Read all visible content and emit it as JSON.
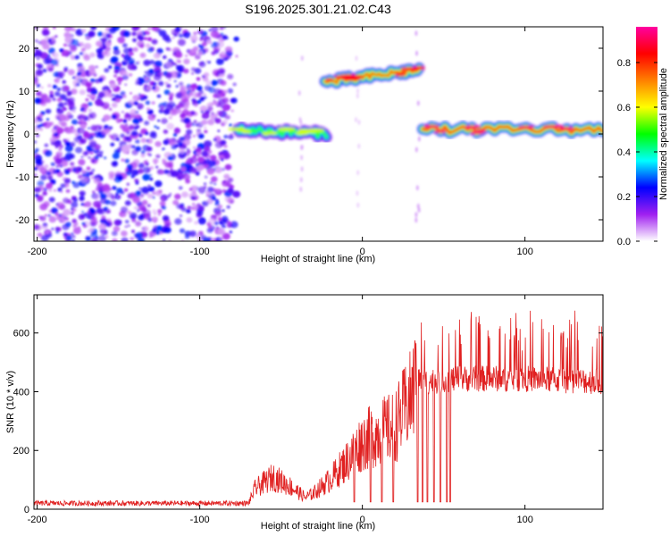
{
  "title": "S196.2025.301.21.02.C43",
  "chart_data": [
    {
      "type": "heatmap",
      "name": "spectrogram",
      "xlabel": "Height of straight line (km)",
      "ylabel": "Frequency (Hz)",
      "xlim": [
        -202,
        148
      ],
      "ylim": [
        -25,
        25
      ],
      "x_ticks": [
        "-200",
        "-100",
        "0",
        "100"
      ],
      "y_ticks": [
        "20",
        "10",
        "0",
        "-10",
        "-20"
      ],
      "colorbar": {
        "label": "Normalized spectral amplitude",
        "range": [
          0,
          0.96
        ],
        "ticks": [
          "0.0",
          "0.2",
          "0.4",
          "0.6",
          "0.8"
        ],
        "colors": [
          "#ffffff",
          "#a020f0",
          "#0000ff",
          "#00ffff",
          "#00ff00",
          "#ffff00",
          "#ff8000",
          "#ff0000",
          "#ff00a0"
        ]
      },
      "noise_region": {
        "x": [
          -202,
          -77
        ],
        "y": [
          -25,
          25
        ],
        "amplitude": 0.15
      },
      "segments": [
        {
          "x": [
            -77,
            -22
          ],
          "freq_start": 1,
          "freq_end": 0,
          "amplitude": 0.5
        },
        {
          "x": [
            -23,
            35
          ],
          "freq_start": 12,
          "freq_end": 15,
          "amplitude": 0.8
        },
        {
          "x": [
            37,
            148
          ],
          "freq_start": 1,
          "freq_end": 1,
          "amplitude": 0.85
        }
      ]
    },
    {
      "type": "line",
      "name": "snr",
      "xlabel": "Height of straight line (km)",
      "ylabel": "SNR (10 * v/v)",
      "xlim": [
        -202,
        148
      ],
      "ylim": [
        0,
        730
      ],
      "x_ticks": [
        "-200",
        "-100",
        "0",
        "100"
      ],
      "y_ticks": [
        "0",
        "200",
        "400",
        "600"
      ],
      "line_color": "#e02020",
      "envelope": {
        "x": [
          -202,
          -70,
          -66,
          -55,
          -45,
          -35,
          -30,
          -20,
          -10,
          0,
          10,
          20,
          25,
          30,
          33,
          40,
          60,
          100,
          148
        ],
        "y": [
          20,
          20,
          70,
          110,
          80,
          40,
          55,
          100,
          160,
          230,
          260,
          280,
          330,
          380,
          440,
          430,
          440,
          440,
          430
        ]
      },
      "dropouts_x": [
        -5,
        5,
        12,
        19,
        34,
        37,
        40,
        44,
        48,
        52,
        54
      ]
    }
  ]
}
